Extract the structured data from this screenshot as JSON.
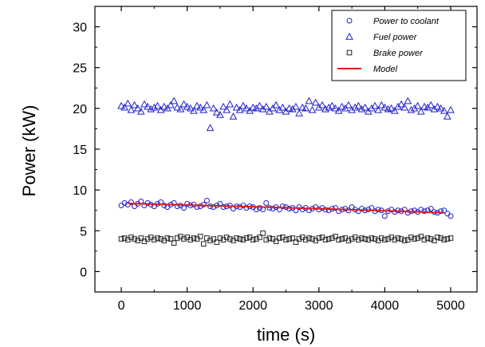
{
  "chart_data": {
    "type": "scatter",
    "xlabel": "time (s)",
    "ylabel": "Power (kW)",
    "xlim": [
      -400,
      5400
    ],
    "ylim": [
      -2.5,
      32.5
    ],
    "xticks": [
      0,
      1000,
      2000,
      3000,
      4000,
      5000
    ],
    "yticks": [
      0,
      5,
      10,
      15,
      20,
      25,
      30
    ],
    "grid": false,
    "legend_position": "top-right",
    "series": [
      {
        "name": "Power  to coolant",
        "marker": "circle",
        "color": "#1f1fcc",
        "x": [
          0,
          50,
          100,
          150,
          200,
          250,
          300,
          350,
          400,
          450,
          500,
          550,
          600,
          650,
          700,
          750,
          800,
          850,
          900,
          950,
          1000,
          1050,
          1100,
          1150,
          1200,
          1250,
          1300,
          1350,
          1400,
          1450,
          1500,
          1550,
          1600,
          1650,
          1700,
          1750,
          1800,
          1850,
          1900,
          1950,
          2000,
          2050,
          2100,
          2150,
          2200,
          2250,
          2300,
          2350,
          2400,
          2450,
          2500,
          2550,
          2600,
          2650,
          2700,
          2750,
          2800,
          2850,
          2900,
          2950,
          3000,
          3050,
          3100,
          3150,
          3200,
          3250,
          3300,
          3350,
          3400,
          3450,
          3500,
          3550,
          3600,
          3650,
          3700,
          3750,
          3800,
          3850,
          3900,
          3950,
          4000,
          4050,
          4100,
          4150,
          4200,
          4250,
          4300,
          4350,
          4400,
          4450,
          4500,
          4550,
          4600,
          4650,
          4700,
          4750,
          4800,
          4850,
          4900,
          4950,
          5000
        ],
        "y": [
          8.1,
          8.4,
          8.2,
          8.5,
          8.0,
          8.3,
          8.6,
          8.1,
          8.4,
          8.2,
          8.0,
          8.3,
          8.5,
          8.1,
          7.9,
          8.2,
          8.4,
          8.0,
          8.1,
          7.8,
          8.3,
          8.1,
          8.2,
          7.9,
          8.0,
          8.2,
          8.7,
          8.0,
          7.9,
          8.1,
          8.3,
          7.9,
          8.0,
          8.1,
          7.7,
          8.0,
          7.9,
          8.1,
          7.8,
          8.0,
          7.9,
          7.6,
          7.8,
          7.6,
          8.4,
          7.8,
          7.7,
          7.9,
          7.6,
          8.0,
          7.9,
          7.7,
          7.8,
          7.5,
          7.9,
          7.6,
          7.8,
          7.5,
          7.7,
          7.9,
          7.6,
          7.8,
          7.6,
          7.5,
          7.7,
          7.8,
          7.4,
          7.6,
          7.7,
          7.5,
          7.9,
          7.6,
          7.4,
          7.7,
          7.5,
          7.6,
          7.8,
          7.4,
          7.6,
          7.5,
          6.8,
          7.4,
          7.6,
          7.3,
          7.5,
          7.4,
          7.6,
          7.2,
          7.4,
          7.5,
          7.3,
          7.6,
          7.4,
          7.5,
          7.7,
          7.3,
          7.2,
          7.4,
          7.5,
          7.1,
          6.8
        ]
      },
      {
        "name": "Fuel power",
        "marker": "triangle",
        "color": "#1f1fcc",
        "x": [
          0,
          50,
          100,
          150,
          200,
          250,
          300,
          350,
          400,
          450,
          500,
          550,
          600,
          650,
          700,
          750,
          800,
          850,
          900,
          950,
          1000,
          1050,
          1100,
          1150,
          1200,
          1250,
          1300,
          1350,
          1400,
          1450,
          1500,
          1550,
          1600,
          1650,
          1700,
          1750,
          1800,
          1850,
          1900,
          1950,
          2000,
          2050,
          2100,
          2150,
          2200,
          2250,
          2300,
          2350,
          2400,
          2450,
          2500,
          2550,
          2600,
          2650,
          2700,
          2750,
          2800,
          2850,
          2900,
          2950,
          3000,
          3050,
          3100,
          3150,
          3200,
          3250,
          3300,
          3350,
          3400,
          3450,
          3500,
          3550,
          3600,
          3650,
          3700,
          3750,
          3800,
          3850,
          3900,
          3950,
          4000,
          4050,
          4100,
          4150,
          4200,
          4250,
          4300,
          4350,
          4400,
          4450,
          4500,
          4550,
          4600,
          4650,
          4700,
          4750,
          4800,
          4850,
          4900,
          4950,
          5000
        ],
        "y": [
          20.3,
          20.1,
          20.6,
          19.8,
          20.4,
          20.0,
          19.6,
          20.5,
          20.2,
          19.9,
          20.1,
          20.3,
          19.8,
          20.2,
          20.0,
          20.4,
          20.9,
          20.1,
          19.9,
          20.5,
          20.2,
          20.0,
          19.7,
          20.3,
          20.1,
          19.8,
          20.4,
          17.6,
          20.0,
          19.5,
          19.2,
          20.2,
          19.8,
          20.5,
          19.0,
          20.1,
          19.8,
          20.3,
          20.0,
          19.7,
          20.1,
          20.0,
          20.3,
          19.9,
          20.2,
          19.6,
          20.0,
          20.4,
          19.8,
          20.1,
          19.6,
          20.0,
          19.9,
          20.2,
          19.4,
          20.1,
          20.0,
          20.9,
          19.8,
          20.7,
          20.1,
          20.4,
          19.9,
          20.1,
          20.3,
          20.0,
          19.7,
          20.2,
          20.0,
          20.4,
          19.8,
          20.1,
          20.3,
          19.9,
          20.1,
          19.6,
          20.0,
          20.3,
          19.8,
          20.4,
          20.1,
          19.9,
          20.0,
          19.7,
          20.2,
          20.5,
          20.1,
          20.9,
          19.8,
          20.0,
          20.3,
          19.6,
          20.2,
          20.1,
          20.4,
          19.9,
          20.2,
          20.0,
          19.7,
          19.0,
          19.8
        ]
      },
      {
        "name": "Brake power",
        "marker": "square",
        "color": "#222222",
        "x": [
          0,
          50,
          100,
          150,
          200,
          250,
          300,
          350,
          400,
          450,
          500,
          550,
          600,
          650,
          700,
          750,
          800,
          850,
          900,
          950,
          1000,
          1050,
          1100,
          1150,
          1200,
          1250,
          1300,
          1350,
          1400,
          1450,
          1500,
          1550,
          1600,
          1650,
          1700,
          1750,
          1800,
          1850,
          1900,
          1950,
          2000,
          2050,
          2100,
          2150,
          2200,
          2250,
          2300,
          2350,
          2400,
          2450,
          2500,
          2550,
          2600,
          2650,
          2700,
          2750,
          2800,
          2850,
          2900,
          2950,
          3000,
          3050,
          3100,
          3150,
          3200,
          3250,
          3300,
          3350,
          3400,
          3450,
          3500,
          3550,
          3600,
          3650,
          3700,
          3750,
          3800,
          3850,
          3900,
          3950,
          4000,
          4050,
          4100,
          4150,
          4200,
          4250,
          4300,
          4350,
          4400,
          4450,
          4500,
          4550,
          4600,
          4650,
          4700,
          4750,
          4800,
          4850,
          4900,
          4950,
          5000
        ],
        "y": [
          4.0,
          4.1,
          3.9,
          4.2,
          4.0,
          3.8,
          4.1,
          3.7,
          4.0,
          4.2,
          3.9,
          4.1,
          4.0,
          3.8,
          4.1,
          4.0,
          3.5,
          4.1,
          4.3,
          4.0,
          4.2,
          3.9,
          4.1,
          4.0,
          4.3,
          3.4,
          4.1,
          3.8,
          4.0,
          3.6,
          4.1,
          3.9,
          4.2,
          4.0,
          3.8,
          4.1,
          4.0,
          3.9,
          4.1,
          4.2,
          3.9,
          4.0,
          4.2,
          4.7,
          3.9,
          4.1,
          4.0,
          3.7,
          4.1,
          4.2,
          3.9,
          4.0,
          4.1,
          3.6,
          4.0,
          4.2,
          3.9,
          4.1,
          4.0,
          3.8,
          4.1,
          4.2,
          3.9,
          4.0,
          4.1,
          4.3,
          3.9,
          4.0,
          4.1,
          3.8,
          4.0,
          4.2,
          3.9,
          4.1,
          4.0,
          3.9,
          4.1,
          4.0,
          3.8,
          4.1,
          3.9,
          4.0,
          4.2,
          3.9,
          4.1,
          4.0,
          3.8,
          3.9,
          4.2,
          4.0,
          4.1,
          4.3,
          3.9,
          4.1,
          4.0,
          3.8,
          4.2,
          4.1,
          3.9,
          4.0,
          4.1
        ]
      },
      {
        "name": "Model",
        "type": "line",
        "color": "#e31a1c",
        "x": [
          100,
          1000,
          2000,
          3000,
          4000,
          4900
        ],
        "y": [
          8.35,
          8.15,
          7.95,
          7.7,
          7.45,
          7.2
        ]
      }
    ]
  }
}
